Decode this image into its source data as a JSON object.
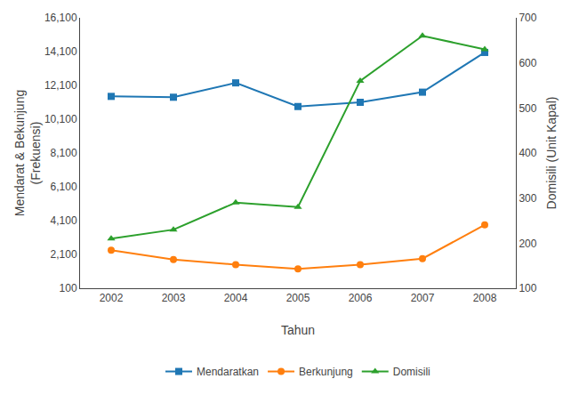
{
  "chart_data": {
    "type": "line",
    "x": [
      2002,
      2003,
      2004,
      2005,
      2006,
      2007,
      2008
    ],
    "xlabel": "Tahun",
    "ylabel": "Mendarat & Bekunjung\n(Frekuensi)",
    "y2label": "Domisili (Unit Kapal)",
    "series": [
      {
        "name": "Mendaratkan",
        "marker": "square",
        "values": [
          11450,
          11400,
          12250,
          10850,
          11100,
          11700,
          14050
        ]
      },
      {
        "name": "Berkunjung",
        "marker": "circle",
        "values": [
          2350,
          1800,
          1500,
          1250,
          1500,
          1850,
          3850
        ]
      },
      {
        "name": "Domisili",
        "marker": "triangle-up",
        "axis": "y2",
        "values": [
          210,
          230,
          290,
          280,
          560,
          660,
          630
        ]
      }
    ],
    "xlim": [
      2001.5,
      2008.5
    ],
    "xticks": [
      2002,
      2003,
      2004,
      2005,
      2006,
      2007,
      2008
    ],
    "ylim": [
      100,
      16100
    ],
    "yticks": [
      100,
      {
        "value": 2100,
        "label": "2,100"
      },
      {
        "value": 4100,
        "label": "4,100"
      },
      {
        "value": 6100,
        "label": "6,100"
      },
      {
        "value": 8100,
        "label": "8,100"
      },
      {
        "value": 10100,
        "label": "10,100"
      },
      {
        "value": 12100,
        "label": "12,100"
      },
      {
        "value": 14100,
        "label": "14,100"
      },
      {
        "value": 16100,
        "label": "16,100"
      }
    ],
    "y2lim": [
      100,
      700
    ],
    "y2ticks": [
      100,
      200,
      300,
      400,
      500,
      600,
      700
    ],
    "grid": false,
    "legend": "bottom"
  }
}
